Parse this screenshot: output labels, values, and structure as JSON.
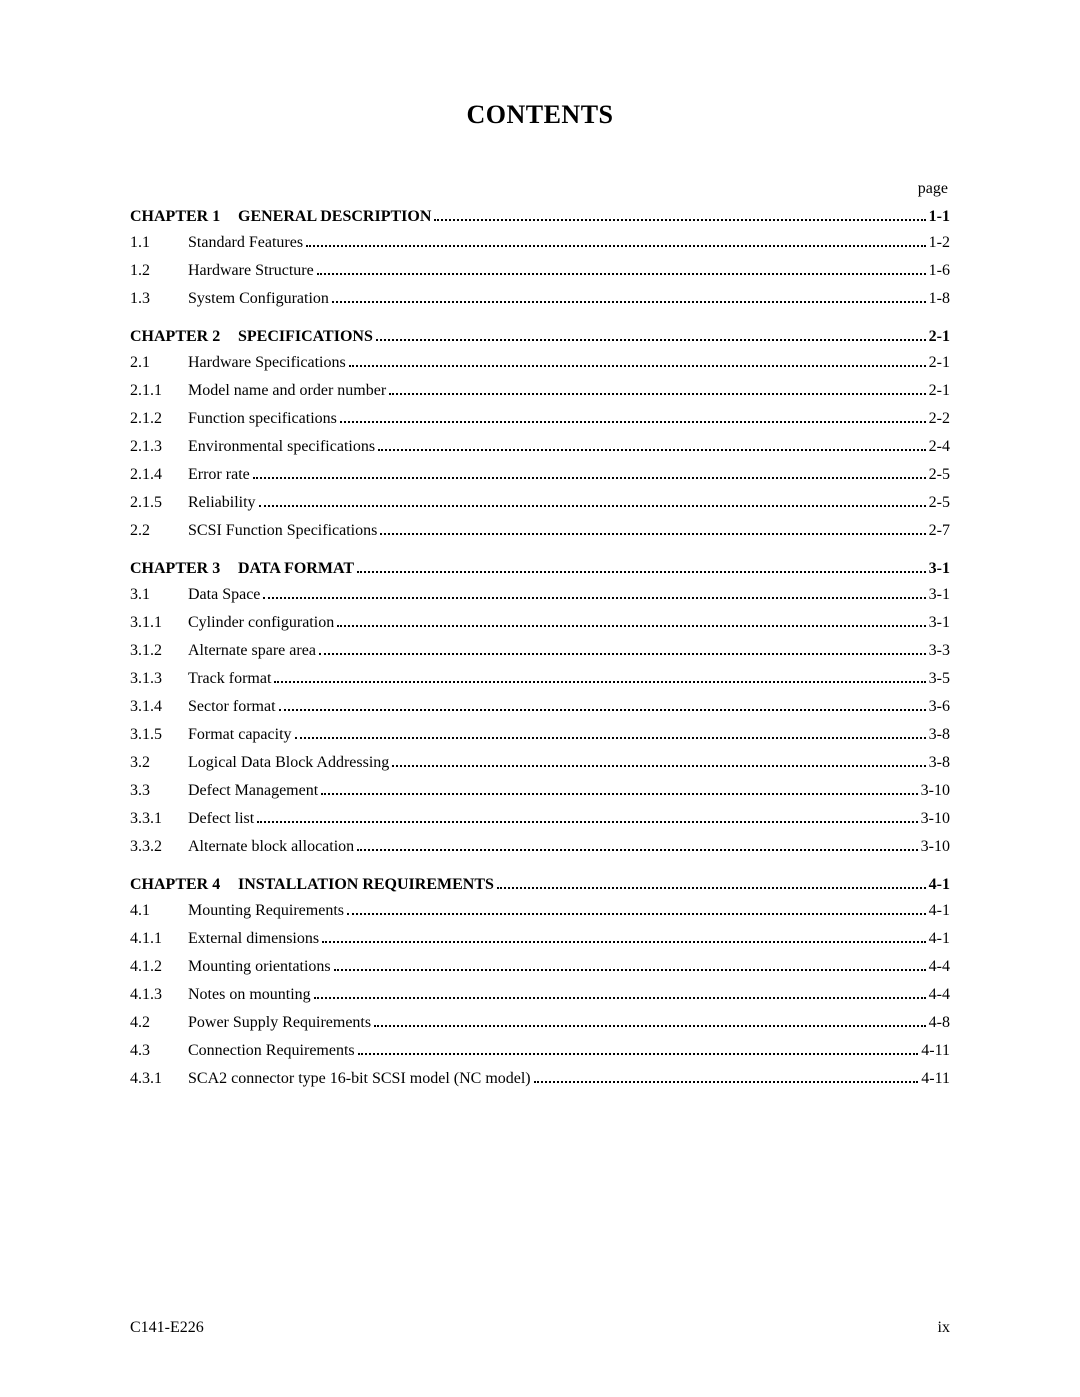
{
  "title": "CONTENTS",
  "page_label": "page",
  "chapters": [
    {
      "label": "CHAPTER 1",
      "title": "GENERAL DESCRIPTION ",
      "page": "1-1",
      "entries": [
        {
          "num": "1.1",
          "title": "Standard Features ",
          "page": "1-2"
        },
        {
          "num": "1.2",
          "title": "Hardware Structure",
          "page": "1-6"
        },
        {
          "num": "1.3",
          "title": "System Configuration ",
          "page": "1-8"
        }
      ]
    },
    {
      "label": "CHAPTER 2",
      "title": "SPECIFICATIONS ",
      "page": "2-1",
      "entries": [
        {
          "num": "2.1",
          "title": "Hardware Specifications",
          "page": "2-1"
        },
        {
          "num": "2.1.1",
          "title": "Model name and order number",
          "page": "2-1"
        },
        {
          "num": "2.1.2",
          "title": "Function specifications",
          "page": "2-2"
        },
        {
          "num": "2.1.3",
          "title": "Environmental specifications ",
          "page": "2-4"
        },
        {
          "num": "2.1.4",
          "title": "Error rate ",
          "page": "2-5"
        },
        {
          "num": "2.1.5",
          "title": "Reliability ",
          "page": "2-5"
        },
        {
          "num": "2.2",
          "title": "SCSI Function Specifications",
          "page": "2-7"
        }
      ]
    },
    {
      "label": "CHAPTER 3",
      "title": "DATA FORMAT",
      "page": "3-1",
      "entries": [
        {
          "num": "3.1",
          "title": "Data Space",
          "page": "3-1"
        },
        {
          "num": "3.1.1",
          "title": "Cylinder configuration",
          "page": "3-1"
        },
        {
          "num": "3.1.2",
          "title": "Alternate spare area",
          "page": "3-3"
        },
        {
          "num": "3.1.3",
          "title": "Track format",
          "page": "3-5"
        },
        {
          "num": "3.1.4",
          "title": "Sector format",
          "page": "3-6"
        },
        {
          "num": "3.1.5",
          "title": "Format capacity ",
          "page": "3-8"
        },
        {
          "num": "3.2",
          "title": "Logical Data Block Addressing",
          "page": "3-8"
        },
        {
          "num": "3.3",
          "title": "Defect Management",
          "page": "3-10"
        },
        {
          "num": "3.3.1",
          "title": "Defect list ",
          "page": "3-10"
        },
        {
          "num": "3.3.2",
          "title": "Alternate block allocation ",
          "page": "3-10"
        }
      ]
    },
    {
      "label": "CHAPTER 4",
      "title": "INSTALLATION REQUIREMENTS ",
      "page": "4-1",
      "entries": [
        {
          "num": "4.1",
          "title": "Mounting Requirements ",
          "page": "4-1"
        },
        {
          "num": "4.1.1",
          "title": "External dimensions ",
          "page": "4-1"
        },
        {
          "num": "4.1.2",
          "title": "Mounting orientations ",
          "page": "4-4"
        },
        {
          "num": "4.1.3",
          "title": "Notes on mounting ",
          "page": "4-4"
        },
        {
          "num": "4.2",
          "title": "Power Supply Requirements ",
          "page": "4-8"
        },
        {
          "num": "4.3",
          "title": "Connection Requirements",
          "page": "4-11"
        },
        {
          "num": "4.3.1",
          "title": "SCA2 connector type 16-bit SCSI model (NC model)",
          "page": "4-11"
        }
      ]
    }
  ],
  "footer_left": "C141-E226",
  "footer_right": "ix"
}
